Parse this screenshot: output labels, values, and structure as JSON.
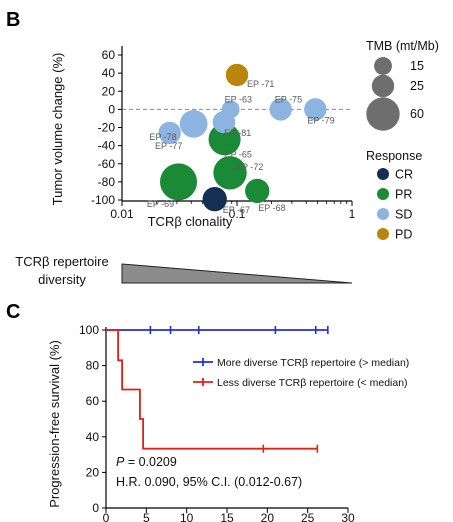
{
  "panel_b": {
    "label": "B",
    "chart_data": {
      "type": "scatter",
      "xlabel": "TCRβ clonality",
      "ylabel": "Tumor volume change (%)",
      "xscale": "log",
      "xlim": [
        0.01,
        1
      ],
      "ylim": [
        -110,
        60
      ],
      "x_ticks": [
        "0.01",
        "0.1",
        "1"
      ],
      "y_ticks": [
        "60",
        "40",
        "20",
        "0",
        "-20",
        "-40",
        "-60",
        "-80",
        "-100"
      ],
      "reference_line_y": 0,
      "points": [
        {
          "id": "EP -71",
          "x": 0.1,
          "y": 38,
          "tmb": 25,
          "response": "PD"
        },
        {
          "id": "EP -63",
          "x": 0.088,
          "y": 0,
          "tmb": 15,
          "response": "SD"
        },
        {
          "id": "EP -75",
          "x": 0.24,
          "y": 0,
          "tmb": 25,
          "response": "SD"
        },
        {
          "id": "EP -79",
          "x": 0.48,
          "y": 0,
          "tmb": 25,
          "response": "SD"
        },
        {
          "id": "EP -81",
          "x": 0.077,
          "y": -14,
          "tmb": 25,
          "response": "SD"
        },
        {
          "id": "EP -78",
          "x": 0.042,
          "y": -16,
          "tmb": 40,
          "response": "SD"
        },
        {
          "id": "EP -77",
          "x": 0.026,
          "y": -26,
          "tmb": 25,
          "response": "SD"
        },
        {
          "id": "EP -65",
          "x": 0.078,
          "y": -33,
          "tmb": 55,
          "response": "PR"
        },
        {
          "id": "EP -72",
          "x": 0.087,
          "y": -70,
          "tmb": 60,
          "response": "PR"
        },
        {
          "id": "EP -69",
          "x": 0.031,
          "y": -80,
          "tmb": 75,
          "response": "PR"
        },
        {
          "id": "EP -68",
          "x": 0.15,
          "y": -90,
          "tmb": 30,
          "response": "PR"
        },
        {
          "id": "EP -67",
          "x": 0.064,
          "y": -99,
          "tmb": 30,
          "response": "CR"
        }
      ]
    },
    "tmb_legend": {
      "title": "TMB (mt/Mb)",
      "items": [
        {
          "label": "15",
          "tmb": 15
        },
        {
          "label": "25",
          "tmb": 25
        },
        {
          "label": "60",
          "tmb": 60
        }
      ]
    },
    "response_legend": {
      "title": "Response",
      "items": [
        {
          "label": "CR",
          "color": "#142e54"
        },
        {
          "label": "PR",
          "color": "#1a8a36"
        },
        {
          "label": "SD",
          "color": "#8db3e0"
        },
        {
          "label": "PD",
          "color": "#b8860b"
        }
      ]
    },
    "diversity_label_line1": "TCRβ repertoire",
    "diversity_label_line2": "diversity"
  },
  "panel_c": {
    "label": "C",
    "chart_data": {
      "type": "line",
      "step": true,
      "xlabel": "",
      "ylabel": "Progression-free survival (%)",
      "xlim": [
        0,
        30
      ],
      "ylim": [
        0,
        100
      ],
      "x_ticks": [
        "0",
        "5",
        "10",
        "15",
        "20",
        "25",
        "30"
      ],
      "y_ticks": [
        "100",
        "80",
        "60",
        "40",
        "20",
        "0"
      ],
      "series": [
        {
          "name": "More diverse TCRβ repertoire (> median)",
          "color": "#1f33cc",
          "steps": [
            [
              0,
              100
            ],
            [
              27.5,
              100
            ]
          ],
          "censored": [
            [
              5.5,
              100
            ],
            [
              8,
              100
            ],
            [
              11.5,
              100
            ],
            [
              21,
              100
            ],
            [
              26,
              100
            ],
            [
              27.5,
              100
            ]
          ]
        },
        {
          "name": "Less diverse TCRβ repertoire (< median)",
          "color": "#e0201c",
          "steps": [
            [
              0,
              100
            ],
            [
              1.5,
              100
            ],
            [
              1.5,
              83
            ],
            [
              2,
              83
            ],
            [
              2,
              66.6
            ],
            [
              4.2,
              66.6
            ],
            [
              4.2,
              50
            ],
            [
              4.6,
              50
            ],
            [
              4.6,
              33.3
            ],
            [
              26.2,
              33.3
            ]
          ],
          "censored": [
            [
              19.5,
              33.3
            ],
            [
              26.2,
              33.3
            ]
          ]
        }
      ]
    },
    "stats_p_label": "P",
    "stats_p_value": " = 0.0209",
    "stats_hr": "H.R. 0.090, 95% C.I. (0.012-0.67)"
  }
}
